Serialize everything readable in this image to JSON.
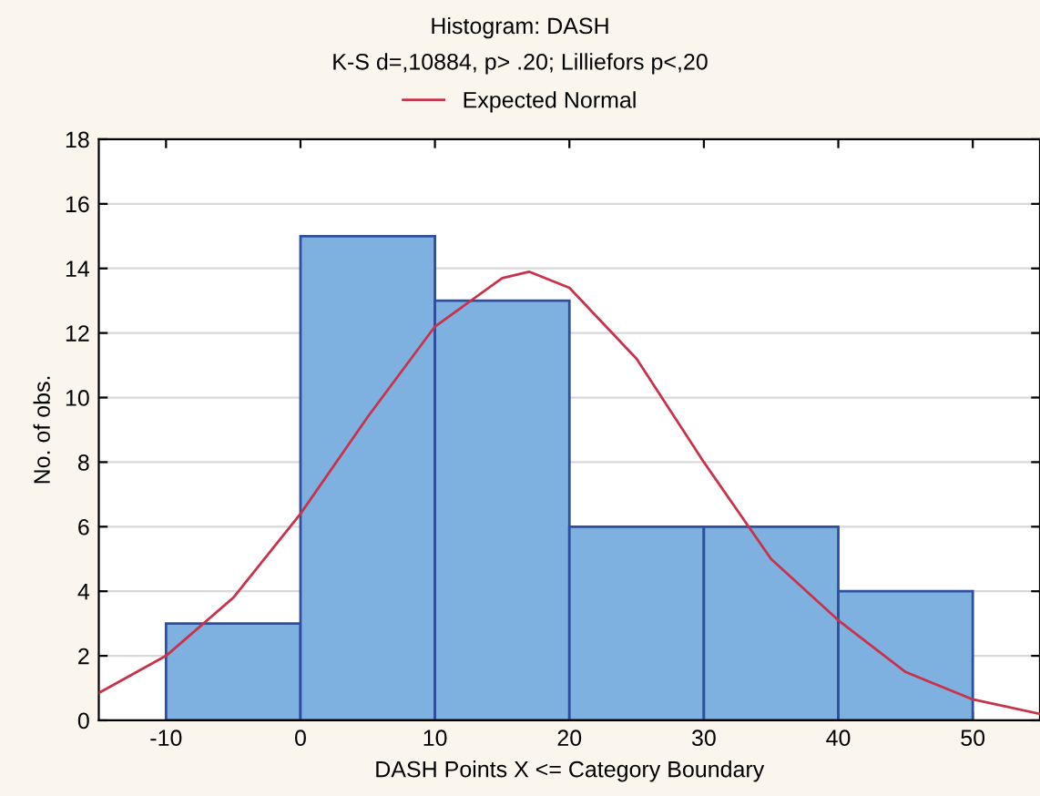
{
  "chart_data": {
    "type": "histogram",
    "title": "Histogram: DASH",
    "subtitle": "K-S d=,10884, p> .20; Lilliefors p<,20",
    "xlabel": "DASH Points X <= Category Boundary",
    "ylabel": "No. of obs.",
    "series": [
      {
        "type": "histogram",
        "color": "#7fb1e0",
        "bins": [
          -10,
          0,
          10,
          20,
          30,
          40,
          50
        ],
        "values": [
          3,
          15,
          13,
          6,
          6,
          4
        ]
      },
      {
        "type": "line",
        "name": "Expected Normal",
        "color": "#c8324a",
        "x": [
          -15,
          -10,
          -5,
          0,
          5,
          10,
          15,
          17,
          20,
          25,
          30,
          35,
          40,
          45,
          50,
          55
        ],
        "values": [
          0.85,
          2.0,
          3.8,
          6.4,
          9.4,
          12.2,
          13.7,
          13.9,
          13.4,
          11.2,
          8.0,
          5.0,
          3.1,
          1.5,
          0.65,
          0.2
        ]
      }
    ],
    "xlim": [
      -15,
      55
    ],
    "xticks": [
      -10,
      0,
      10,
      20,
      30,
      40,
      50
    ],
    "ylim": [
      0,
      18
    ],
    "yticks": [
      0,
      2,
      4,
      6,
      8,
      10,
      12,
      14,
      16,
      18
    ],
    "grid": "y",
    "legend": "top"
  }
}
